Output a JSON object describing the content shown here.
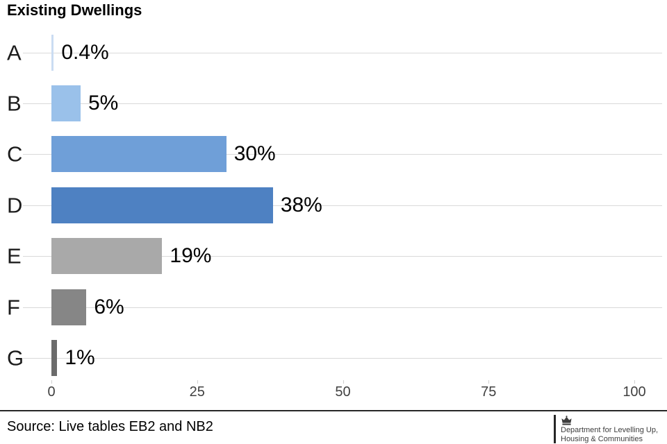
{
  "title": "Existing Dwellings",
  "chart_data": {
    "type": "bar",
    "orientation": "horizontal",
    "title": "Existing Dwellings",
    "categories": [
      "A",
      "B",
      "C",
      "D",
      "E",
      "F",
      "G"
    ],
    "values": [
      0.4,
      5,
      30,
      38,
      19,
      6,
      1
    ],
    "value_labels": [
      "0.4%",
      "5%",
      "30%",
      "38%",
      "19%",
      "6%",
      "1%"
    ],
    "bar_colors": [
      "#cadcf2",
      "#9ac1ea",
      "#6f9fd8",
      "#4e81c2",
      "#a9a9a9",
      "#868686",
      "#6b6b6b"
    ],
    "x_ticks": [
      0,
      25,
      50,
      75,
      100
    ],
    "xlim": [
      0,
      100
    ],
    "xlabel": "",
    "ylabel": "",
    "grid": "horizontal-only",
    "gridline_color": "#d9d9d9",
    "legend": "none"
  },
  "footer": {
    "source": "Source: Live tables EB2 and NB2",
    "logo": {
      "icon": "crown-icon",
      "line1": "Department for Levelling Up,",
      "line2": "Housing & Communities"
    }
  }
}
